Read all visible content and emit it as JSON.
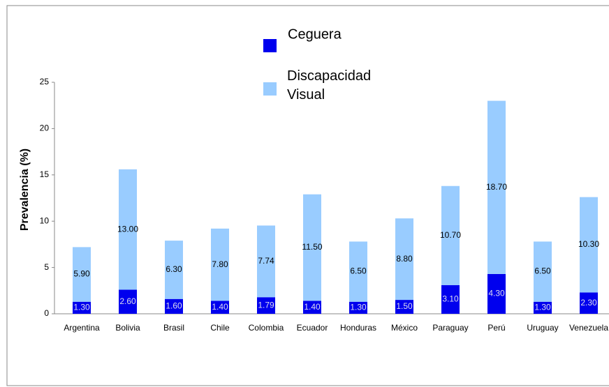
{
  "chart_data": {
    "type": "stacked-bar",
    "ylabel": "Prevalencia (%)",
    "categories": [
      "Argentina",
      "Bolivia",
      "Brasil",
      "Chile",
      "Colombia",
      "Ecuador",
      "Honduras",
      "México",
      "Paraguay",
      "Perú",
      "Uruguay",
      "Venezuela"
    ],
    "series": [
      {
        "name": "Ceguera",
        "color": "#0000ee",
        "values": [
          1.3,
          2.6,
          1.6,
          1.4,
          1.79,
          1.4,
          1.3,
          1.5,
          3.1,
          4.3,
          1.3,
          2.3
        ],
        "value_labels": [
          "1.30",
          "2.60",
          "1.60",
          "1.40",
          "1.79",
          "1.40",
          "1.30",
          "1.50",
          "3.10",
          "4.30",
          "1.30",
          "2.30"
        ]
      },
      {
        "name": "Discapacidad Visual",
        "color": "#99ccff",
        "values": [
          5.9,
          13.0,
          6.3,
          7.8,
          7.74,
          11.5,
          6.5,
          8.8,
          10.7,
          18.7,
          6.5,
          10.3
        ],
        "value_labels": [
          "5.90",
          "13.00",
          "6.30",
          "7.80",
          "7.74",
          "11.50",
          "6.50",
          "8.80",
          "10.70",
          "18.70",
          "6.50",
          "10.30"
        ]
      }
    ],
    "ylim": [
      0,
      25
    ],
    "yticks": [
      0,
      5,
      10,
      15,
      20,
      25
    ],
    "grid": false
  }
}
